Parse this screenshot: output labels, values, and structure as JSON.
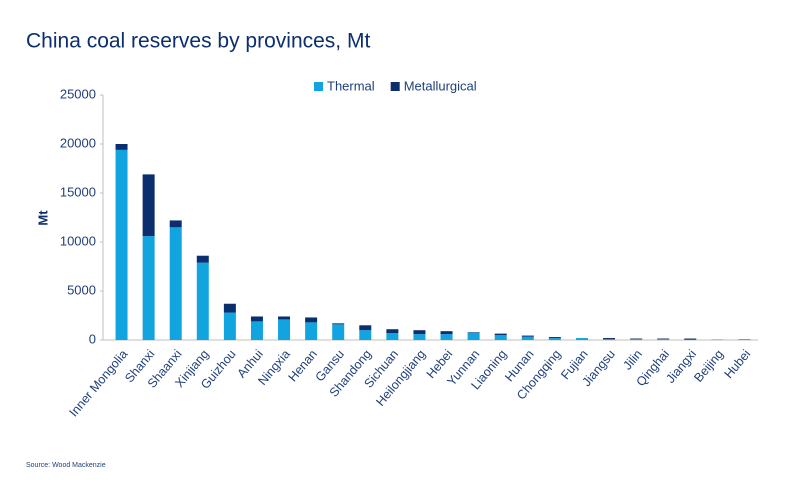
{
  "chart_data": {
    "type": "stacked_bar",
    "title": "China coal reserves by provinces, Mt",
    "y_label": "Mt",
    "source": "Source: Wood Mackenzie",
    "categories": [
      "Inner Mongolia",
      "Shanxi",
      "Shaanxi",
      "Xinjiang",
      "Guizhou",
      "Anhui",
      "Ningxia",
      "Henan",
      "Gansu",
      "Shandong",
      "Sichuan",
      "Heilongjiang",
      "Hebei",
      "Yunnan",
      "Liaoning",
      "Hunan",
      "Chongqing",
      "Fujian",
      "Jiangsu",
      "Jilin",
      "Qinghai",
      "Jiangxi",
      "Beijing",
      "Hubei"
    ],
    "series": [
      {
        "name": "Thermal",
        "color": "#12a4df",
        "values": [
          19400,
          10600,
          11500,
          7900,
          2800,
          1900,
          2100,
          1800,
          1600,
          1000,
          700,
          600,
          600,
          750,
          500,
          350,
          200,
          200,
          100,
          100,
          100,
          50,
          50,
          50
        ]
      },
      {
        "name": "Metallurgical",
        "color": "#0b2e6f",
        "values": [
          600,
          6300,
          700,
          700,
          900,
          500,
          300,
          500,
          100,
          500,
          400,
          400,
          300,
          50,
          150,
          100,
          100,
          0,
          100,
          50,
          50,
          100,
          0,
          20
        ]
      }
    ],
    "ylim": [
      0,
      25000
    ],
    "yticks": [
      0,
      5000,
      10000,
      15000,
      20000,
      25000
    ],
    "legend": "top"
  }
}
